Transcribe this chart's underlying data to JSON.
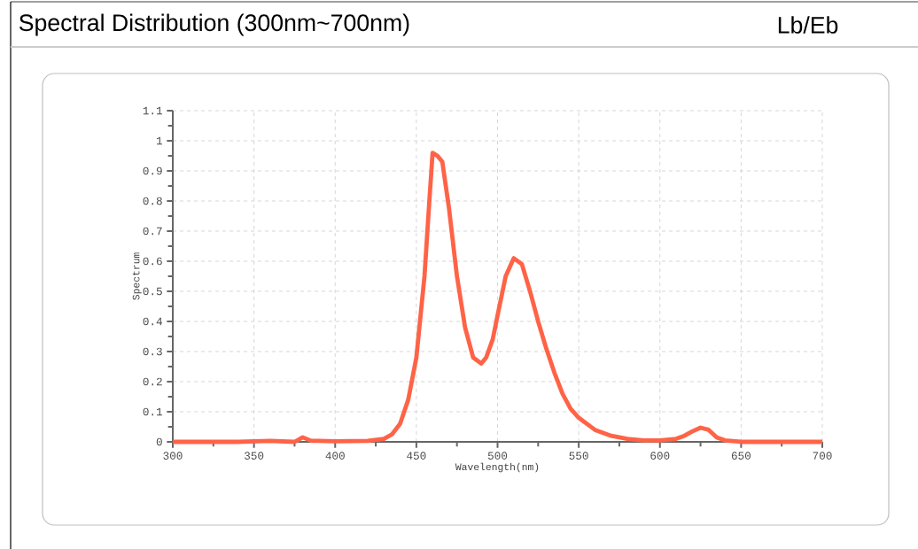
{
  "chart_data": {
    "type": "line",
    "title": "Spectral Distribution (300nm~700nm)",
    "annotations": [
      "Lb/Eb"
    ],
    "xlabel": "Wavelength(nm)",
    "ylabel": "Spectrum",
    "x": [
      300,
      320,
      340,
      360,
      375,
      380,
      385,
      400,
      420,
      430,
      435,
      440,
      445,
      450,
      455,
      458,
      460,
      463,
      466,
      470,
      475,
      480,
      485,
      490,
      493,
      497,
      500,
      505,
      510,
      515,
      520,
      525,
      530,
      535,
      540,
      545,
      550,
      555,
      560,
      570,
      580,
      590,
      600,
      610,
      615,
      620,
      625,
      630,
      635,
      640,
      650,
      675,
      700
    ],
    "series": [
      {
        "color": "#ff6347",
        "values": [
          0,
          0,
          0,
          0.003,
          0,
          0.015,
          0.004,
          0.002,
          0.003,
          0.01,
          0.025,
          0.06,
          0.14,
          0.28,
          0.55,
          0.8,
          0.96,
          0.95,
          0.93,
          0.78,
          0.55,
          0.38,
          0.28,
          0.26,
          0.28,
          0.34,
          0.42,
          0.55,
          0.61,
          0.59,
          0.5,
          0.4,
          0.31,
          0.23,
          0.16,
          0.11,
          0.08,
          0.06,
          0.04,
          0.02,
          0.01,
          0.005,
          0.005,
          0.01,
          0.02,
          0.035,
          0.047,
          0.04,
          0.015,
          0.005,
          0,
          0,
          0
        ]
      }
    ],
    "xlim": [
      300,
      700
    ],
    "ylim": [
      0,
      1.1
    ],
    "xticks": [
      300,
      350,
      400,
      450,
      500,
      550,
      600,
      650,
      700
    ],
    "yticks": [
      0,
      0.1,
      0.2,
      0.3,
      0.4,
      0.5,
      0.6,
      0.7,
      0.8,
      0.9,
      1,
      1.1
    ],
    "grid": true
  }
}
